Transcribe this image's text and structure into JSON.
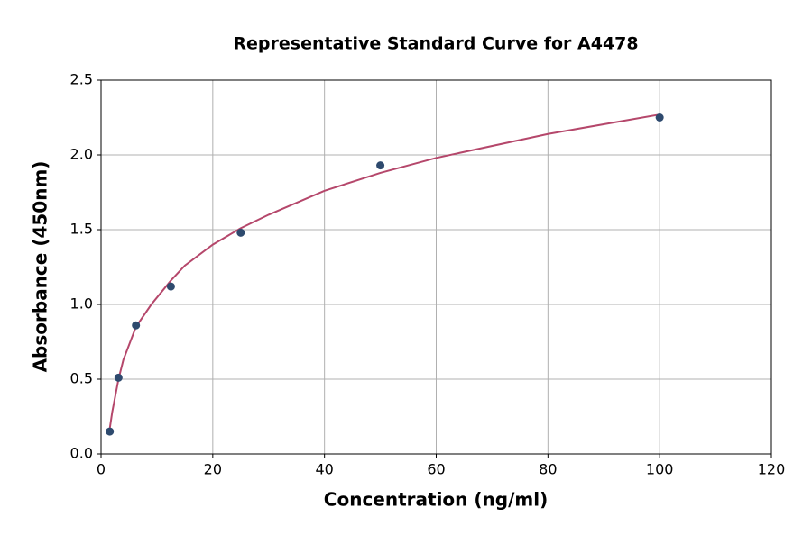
{
  "chart_data": {
    "type": "scatter",
    "title": "Representative Standard Curve for A4478",
    "xlabel": "Concentration (ng/ml)",
    "ylabel": "Absorbance (450nm)",
    "xlim": [
      0,
      120
    ],
    "xticks": [
      0,
      20,
      40,
      60,
      80,
      100,
      120
    ],
    "ylim": [
      0,
      2.5
    ],
    "yticks": [
      {
        "value": 0,
        "label": "0.0"
      },
      0.5,
      {
        "value": 1,
        "label": "1.0"
      },
      1.5,
      {
        "value": 2,
        "label": "2.0"
      },
      2.5
    ],
    "grid": true,
    "series": [
      {
        "type": "scatter",
        "color": "#2e4a6e",
        "x": [
          1.5625,
          3.125,
          6.25,
          12.5,
          25,
          50,
          100
        ],
        "values": [
          0.15,
          0.51,
          0.86,
          1.12,
          1.48,
          1.93,
          2.25
        ]
      },
      {
        "type": "line",
        "color": "#b5476b",
        "x": [
          1.5625,
          2,
          3.125,
          4,
          6.25,
          9,
          12.5,
          15,
          20,
          25,
          30,
          40,
          50,
          60,
          80,
          100
        ],
        "values": [
          0.17,
          0.28,
          0.5,
          0.63,
          0.85,
          1.0,
          1.16,
          1.26,
          1.4,
          1.51,
          1.6,
          1.76,
          1.88,
          1.98,
          2.14,
          2.27
        ]
      }
    ]
  }
}
